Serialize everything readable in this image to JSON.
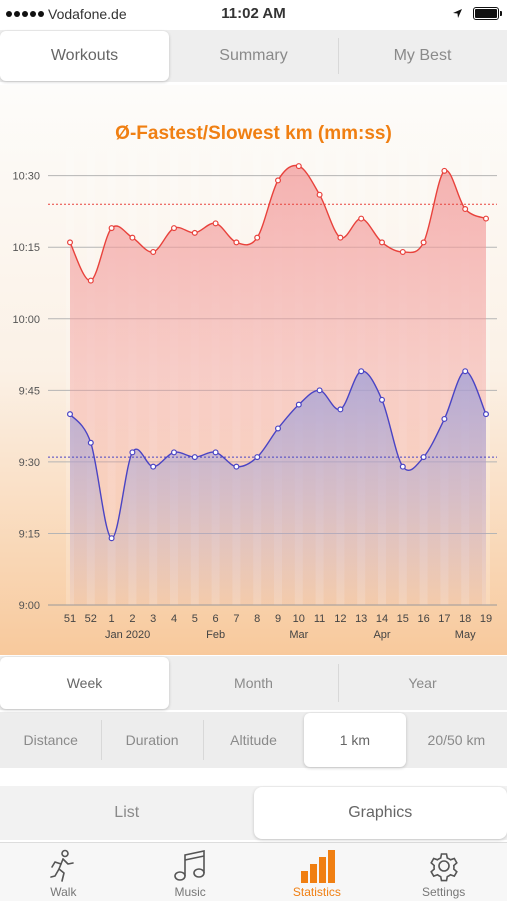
{
  "status": {
    "carrier": "Vodafone.de",
    "time": "11:02 AM"
  },
  "tabs_top": [
    {
      "label": "Workouts",
      "active": true
    },
    {
      "label": "Summary",
      "active": false
    },
    {
      "label": "My Best",
      "active": false
    }
  ],
  "chart_data": {
    "type": "line",
    "title": "Ø-Fastest/Slowest km  (mm:ss)",
    "x": [
      "51",
      "52",
      "1",
      "2",
      "3",
      "4",
      "5",
      "6",
      "7",
      "8",
      "9",
      "10",
      "11",
      "12",
      "13",
      "14",
      "15",
      "16",
      "17",
      "18",
      "19"
    ],
    "month_labels": [
      {
        "label": "Jan 2020",
        "at": "1"
      },
      {
        "label": "Feb",
        "at": "6"
      },
      {
        "label": "Mar",
        "at": "10"
      },
      {
        "label": "Apr",
        "at": "14"
      },
      {
        "label": "May",
        "at": "18"
      }
    ],
    "y_ticks": [
      "9:00",
      "9:15",
      "9:30",
      "9:45",
      "10:00",
      "10:15",
      "10:30"
    ],
    "ylim": [
      "9:00",
      "10:36"
    ],
    "series": [
      {
        "color": "#e8423c",
        "fill": "#f29a9a",
        "values": [
          "10:16",
          "10:08",
          "10:19",
          "10:17",
          "10:14",
          "10:19",
          "10:18",
          "10:20",
          "10:16",
          "10:17",
          "10:29",
          "10:32",
          "10:26",
          "10:17",
          "10:21",
          "10:16",
          "10:14",
          "10:16",
          "10:31",
          "10:23",
          "10:21"
        ],
        "average": "10:24"
      },
      {
        "color": "#4a44c4",
        "fill": "#9f9fd8",
        "values": [
          "9:40",
          "9:34",
          "9:14",
          "9:32",
          "9:29",
          "9:32",
          "9:31",
          "9:32",
          "9:29",
          "9:31",
          "9:37",
          "9:42",
          "9:45",
          "9:41",
          "9:49",
          "9:43",
          "9:29",
          "9:31",
          "9:39",
          "9:49",
          "9:40"
        ],
        "average": "9:31"
      }
    ]
  },
  "tabs_period": [
    {
      "label": "Week",
      "active": true
    },
    {
      "label": "Month",
      "active": false
    },
    {
      "label": "Year",
      "active": false
    }
  ],
  "tabs_metric": [
    {
      "label": "Distance",
      "active": false
    },
    {
      "label": "Duration",
      "active": false
    },
    {
      "label": "Altitude",
      "active": false
    },
    {
      "label": "1 km",
      "active": true
    },
    {
      "label": "20/50 km",
      "active": false
    }
  ],
  "tabs_view": [
    {
      "label": "List",
      "active": false
    },
    {
      "label": "Graphics",
      "active": true
    }
  ],
  "tabbar": [
    {
      "label": "Walk",
      "icon": "walker-icon",
      "active": false
    },
    {
      "label": "Music",
      "icon": "music-note-icon",
      "active": false
    },
    {
      "label": "Statistics",
      "icon": "bar-chart-icon",
      "active": true
    },
    {
      "label": "Settings",
      "icon": "gear-icon",
      "active": false
    }
  ]
}
